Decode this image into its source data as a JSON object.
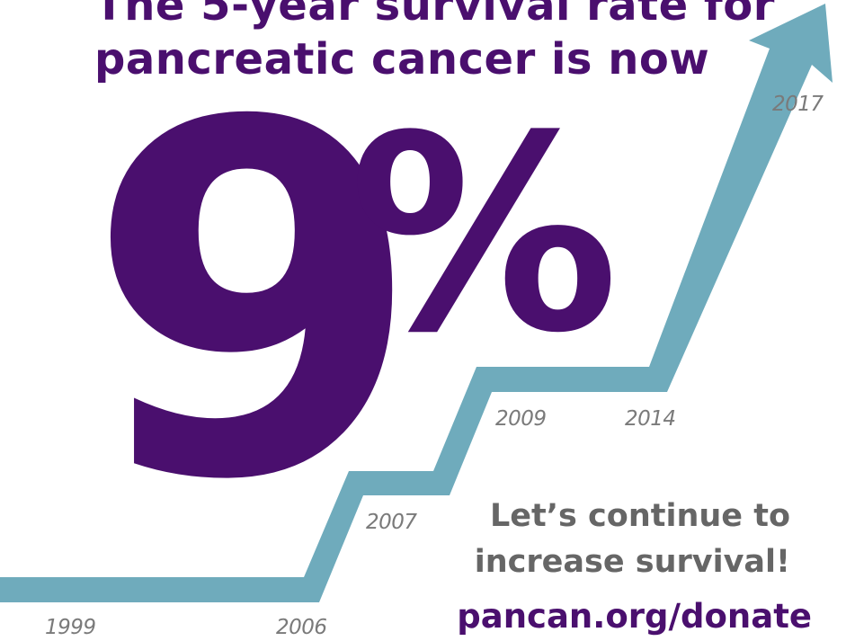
{
  "headline": {
    "line1": "The 5-year survival rate for",
    "line2": "pancreatic cancer is now"
  },
  "stat": {
    "number": "9",
    "unit": "%"
  },
  "trend": {
    "years": [
      "1999",
      "2006",
      "2007",
      "2009",
      "2014",
      "2017"
    ],
    "arrow_color": "#6fabbc"
  },
  "cta": {
    "line1": "Let’s continue to",
    "line2": "increase survival!",
    "url": "pancan.org/donate"
  },
  "colors": {
    "purple": "#4a0f6e",
    "gray": "#666666",
    "year_gray": "#7a7a7a",
    "teal": "#6fabbc"
  }
}
